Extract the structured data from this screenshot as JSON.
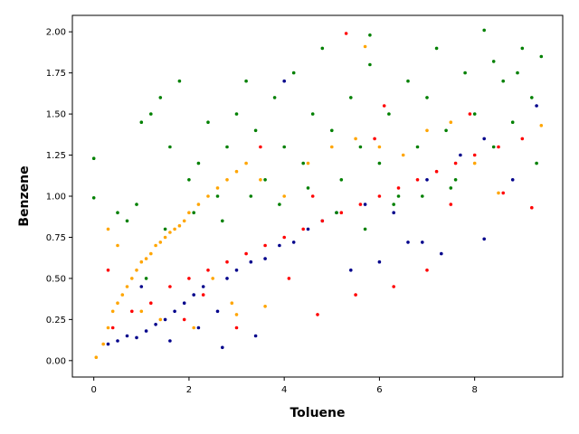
{
  "chart_data": {
    "type": "scatter",
    "title": "",
    "xlabel": "Toluene",
    "ylabel": "Benzene",
    "xlim": [
      -0.45,
      9.85
    ],
    "ylim": [
      -0.1,
      2.1
    ],
    "xticks": [
      0,
      2,
      4,
      6,
      8
    ],
    "yticks": [
      0.0,
      0.25,
      0.5,
      0.75,
      1.0,
      1.25,
      1.5,
      1.75,
      2.0
    ],
    "ytick_labels": [
      "0.00",
      "0.25",
      "0.50",
      "0.75",
      "1.00",
      "1.25",
      "1.50",
      "1.75",
      "2.00"
    ],
    "grid": false,
    "legend": "none",
    "series": [
      {
        "color": "#00008b",
        "points": [
          [
            0.3,
            0.1
          ],
          [
            0.5,
            0.12
          ],
          [
            0.7,
            0.15
          ],
          [
            0.9,
            0.14
          ],
          [
            1.1,
            0.18
          ],
          [
            1.3,
            0.22
          ],
          [
            1.5,
            0.25
          ],
          [
            1.7,
            0.3
          ],
          [
            1.9,
            0.35
          ],
          [
            2.1,
            0.4
          ],
          [
            2.3,
            0.45
          ],
          [
            2.6,
            0.3
          ],
          [
            2.8,
            0.5
          ],
          [
            3.0,
            0.55
          ],
          [
            3.3,
            0.6
          ],
          [
            3.6,
            0.62
          ],
          [
            3.9,
            0.7
          ],
          [
            4.2,
            0.72
          ],
          [
            4.5,
            0.8
          ],
          [
            4.8,
            0.85
          ],
          [
            5.1,
            0.9
          ],
          [
            5.4,
            0.55
          ],
          [
            5.7,
            0.95
          ],
          [
            6.0,
            0.6
          ],
          [
            6.3,
            0.9
          ],
          [
            6.6,
            0.72
          ],
          [
            7.0,
            1.1
          ],
          [
            7.3,
            0.65
          ],
          [
            7.7,
            1.25
          ],
          [
            8.2,
            0.74
          ],
          [
            8.8,
            1.1
          ],
          [
            9.3,
            1.55
          ],
          [
            3.4,
            0.15
          ],
          [
            2.7,
            0.08
          ],
          [
            1.0,
            0.45
          ],
          [
            8.2,
            1.35
          ],
          [
            6.9,
            0.72
          ],
          [
            4.0,
            1.7
          ],
          [
            2.2,
            0.2
          ],
          [
            1.6,
            0.12
          ]
        ]
      },
      {
        "color": "#ff0000",
        "points": [
          [
            0.4,
            0.2
          ],
          [
            0.8,
            0.3
          ],
          [
            1.2,
            0.35
          ],
          [
            1.6,
            0.45
          ],
          [
            2.0,
            0.5
          ],
          [
            2.4,
            0.55
          ],
          [
            2.8,
            0.6
          ],
          [
            3.2,
            0.65
          ],
          [
            3.6,
            0.7
          ],
          [
            4.0,
            0.75
          ],
          [
            4.4,
            0.8
          ],
          [
            4.8,
            0.85
          ],
          [
            5.2,
            0.9
          ],
          [
            5.6,
            0.95
          ],
          [
            6.0,
            1.0
          ],
          [
            6.4,
            1.05
          ],
          [
            6.8,
            1.1
          ],
          [
            7.2,
            1.15
          ],
          [
            7.6,
            1.2
          ],
          [
            8.0,
            1.25
          ],
          [
            8.5,
            1.3
          ],
          [
            9.0,
            1.35
          ],
          [
            5.5,
            0.4
          ],
          [
            6.3,
            0.45
          ],
          [
            7.0,
            0.55
          ],
          [
            7.5,
            0.95
          ],
          [
            5.3,
            1.99
          ],
          [
            4.7,
            0.28
          ],
          [
            2.3,
            0.4
          ],
          [
            3.5,
            1.3
          ],
          [
            4.1,
            0.5
          ],
          [
            6.1,
            1.55
          ],
          [
            8.6,
            1.02
          ],
          [
            9.2,
            0.93
          ],
          [
            0.3,
            0.55
          ],
          [
            1.9,
            0.25
          ],
          [
            3.0,
            0.2
          ],
          [
            7.9,
            1.5
          ],
          [
            5.9,
            1.35
          ],
          [
            4.6,
            1.0
          ]
        ]
      },
      {
        "color": "#008000",
        "points": [
          [
            0.0,
            1.23
          ],
          [
            0.0,
            0.99
          ],
          [
            0.5,
            0.9
          ],
          [
            0.7,
            0.85
          ],
          [
            0.9,
            0.95
          ],
          [
            1.0,
            1.45
          ],
          [
            1.2,
            1.5
          ],
          [
            1.4,
            1.6
          ],
          [
            1.6,
            1.3
          ],
          [
            1.8,
            1.7
          ],
          [
            2.0,
            1.1
          ],
          [
            2.2,
            1.2
          ],
          [
            2.4,
            1.45
          ],
          [
            2.6,
            1.0
          ],
          [
            2.8,
            1.3
          ],
          [
            3.0,
            1.5
          ],
          [
            3.2,
            1.7
          ],
          [
            3.4,
            1.4
          ],
          [
            3.6,
            1.1
          ],
          [
            3.8,
            1.6
          ],
          [
            4.0,
            1.3
          ],
          [
            4.2,
            1.75
          ],
          [
            4.4,
            1.2
          ],
          [
            4.6,
            1.5
          ],
          [
            4.8,
            1.9
          ],
          [
            5.0,
            1.4
          ],
          [
            5.2,
            1.1
          ],
          [
            5.4,
            1.6
          ],
          [
            5.6,
            1.3
          ],
          [
            5.8,
            1.8
          ],
          [
            6.0,
            1.2
          ],
          [
            6.2,
            1.5
          ],
          [
            6.4,
            1.0
          ],
          [
            6.6,
            1.7
          ],
          [
            6.8,
            1.3
          ],
          [
            7.0,
            1.6
          ],
          [
            7.2,
            1.9
          ],
          [
            7.4,
            1.4
          ],
          [
            7.6,
            1.1
          ],
          [
            7.8,
            1.75
          ],
          [
            8.0,
            1.5
          ],
          [
            8.2,
            2.01
          ],
          [
            8.4,
            1.3
          ],
          [
            8.6,
            1.7
          ],
          [
            8.8,
            1.45
          ],
          [
            9.0,
            1.9
          ],
          [
            9.2,
            1.6
          ],
          [
            9.4,
            1.85
          ],
          [
            1.5,
            0.8
          ],
          [
            2.1,
            0.9
          ],
          [
            2.7,
            0.85
          ],
          [
            3.3,
            1.0
          ],
          [
            3.9,
            0.95
          ],
          [
            4.5,
            1.05
          ],
          [
            5.1,
            0.9
          ],
          [
            5.7,
            0.8
          ],
          [
            6.3,
            0.95
          ],
          [
            6.9,
            1.0
          ],
          [
            7.5,
            1.05
          ],
          [
            9.3,
            1.2
          ],
          [
            5.8,
            1.98
          ],
          [
            8.4,
            1.82
          ],
          [
            8.9,
            1.75
          ],
          [
            1.1,
            0.5
          ]
        ]
      },
      {
        "color": "#ffa500",
        "points": [
          [
            0.05,
            0.02
          ],
          [
            0.2,
            0.1
          ],
          [
            0.3,
            0.2
          ],
          [
            0.4,
            0.3
          ],
          [
            0.5,
            0.35
          ],
          [
            0.6,
            0.4
          ],
          [
            0.7,
            0.45
          ],
          [
            0.8,
            0.5
          ],
          [
            0.9,
            0.55
          ],
          [
            1.0,
            0.6
          ],
          [
            1.1,
            0.62
          ],
          [
            1.2,
            0.65
          ],
          [
            1.3,
            0.7
          ],
          [
            1.4,
            0.72
          ],
          [
            1.5,
            0.75
          ],
          [
            1.6,
            0.78
          ],
          [
            1.7,
            0.8
          ],
          [
            1.8,
            0.82
          ],
          [
            1.9,
            0.85
          ],
          [
            2.0,
            0.9
          ],
          [
            2.2,
            0.95
          ],
          [
            2.4,
            1.0
          ],
          [
            2.6,
            1.05
          ],
          [
            2.8,
            1.1
          ],
          [
            3.0,
            1.15
          ],
          [
            3.2,
            1.2
          ],
          [
            3.5,
            1.1
          ],
          [
            4.0,
            1.0
          ],
          [
            4.5,
            1.2
          ],
          [
            5.0,
            1.3
          ],
          [
            5.5,
            1.35
          ],
          [
            6.0,
            1.3
          ],
          [
            6.5,
            1.25
          ],
          [
            7.0,
            1.4
          ],
          [
            7.5,
            1.45
          ],
          [
            8.0,
            1.2
          ],
          [
            8.5,
            1.02
          ],
          [
            9.4,
            1.43
          ],
          [
            5.7,
            1.91
          ],
          [
            3.6,
            0.33
          ],
          [
            3.0,
            0.28
          ],
          [
            2.1,
            0.2
          ],
          [
            0.5,
            0.7
          ],
          [
            0.3,
            0.8
          ],
          [
            1.0,
            0.3
          ],
          [
            1.4,
            0.25
          ],
          [
            2.5,
            0.5
          ],
          [
            2.9,
            0.35
          ]
        ]
      }
    ]
  }
}
